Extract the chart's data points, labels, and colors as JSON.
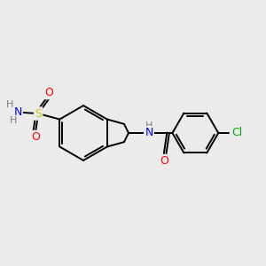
{
  "bg_color": "#ebebeb",
  "bond_color": "#000000",
  "bond_width": 1.4,
  "colors": {
    "H": "#7a7a7a",
    "N": "#0000ff",
    "O": "#ff0000",
    "S": "#cccc00",
    "Cl": "#00aa00"
  },
  "figsize": [
    3.0,
    3.0
  ],
  "dpi": 100
}
